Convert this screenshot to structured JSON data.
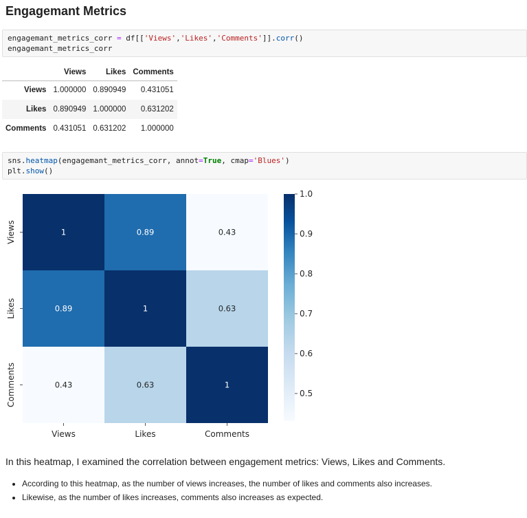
{
  "heading": "Engagemant Metrics",
  "code1": {
    "line1": {
      "lhs": "engagemant_metrics_corr ",
      "eq": "=",
      "mid": " df[[",
      "s1": "'Views'",
      "c1": ",",
      "s2": "'Likes'",
      "c2": ",",
      "s3": "'Comments'",
      "close": "]].",
      "fn": "corr",
      "end": "()"
    },
    "line2": "engagemant_metrics_corr"
  },
  "table": {
    "columns": [
      "Views",
      "Likes",
      "Comments"
    ],
    "rows": [
      {
        "label": "Views",
        "values": [
          "1.000000",
          "0.890949",
          "0.431051"
        ]
      },
      {
        "label": "Likes",
        "values": [
          "0.890949",
          "1.000000",
          "0.631202"
        ]
      },
      {
        "label": "Comments",
        "values": [
          "0.431051",
          "0.631202",
          "1.000000"
        ]
      }
    ]
  },
  "code2": {
    "line1": {
      "a": "sns.",
      "fn": "heatmap",
      "b": "(engagemant_metrics_corr, annot",
      "eq1": "=",
      "kw": "True",
      "c": ", cmap",
      "eq2": "=",
      "str": "'Blues'",
      "d": ")"
    },
    "line2": {
      "a": "plt.",
      "fn": "show",
      "b": "()"
    }
  },
  "chart_data": {
    "type": "heatmap",
    "x_categories": [
      "Views",
      "Likes",
      "Comments"
    ],
    "y_categories": [
      "Views",
      "Likes",
      "Comments"
    ],
    "values": [
      [
        1.0,
        0.890949,
        0.431051
      ],
      [
        0.890949,
        1.0,
        0.631202
      ],
      [
        0.431051,
        0.631202,
        1.0
      ]
    ],
    "annotations": [
      [
        "1",
        "0.89",
        "0.43"
      ],
      [
        "0.89",
        "1",
        "0.63"
      ],
      [
        "0.43",
        "0.63",
        "1"
      ]
    ],
    "cmap": "Blues",
    "colorbar": {
      "min": 0.431051,
      "max": 1.0,
      "ticks": [
        0.5,
        0.6,
        0.7,
        0.8,
        0.9,
        1.0
      ],
      "tick_labels": [
        "0.5",
        "0.6",
        "0.7",
        "0.8",
        "0.9",
        "1.0"
      ]
    }
  },
  "markdown": {
    "paragraph": "In this heatmap, I examined the correlation between engagement metrics: Views, Likes and Comments.",
    "bullets": [
      "According to this heatmap, as the number of views increases, the number of likes and comments also increases.",
      "Likewise, as the number of likes increases, comments also increases as expected."
    ]
  }
}
